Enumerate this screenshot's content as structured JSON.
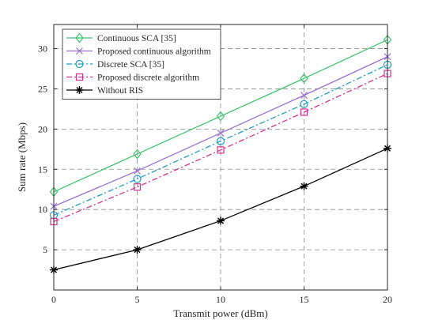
{
  "chart_data": {
    "type": "line",
    "xlabel": "Transmit power (dBm)",
    "ylabel": "Sum rate (Mbps)",
    "xlim": [
      0,
      20
    ],
    "ylim": [
      0,
      33
    ],
    "xticks": [
      0,
      5,
      10,
      15,
      20
    ],
    "yticks": [
      5,
      10,
      15,
      20,
      25,
      30
    ],
    "grid": true,
    "grid_style": "dashed",
    "legend_position": "top-left",
    "x": [
      0,
      5,
      10,
      15,
      20
    ],
    "series": [
      {
        "name": "Continuous SCA [35]",
        "values": [
          12.2,
          16.9,
          21.6,
          26.3,
          31.1
        ],
        "color": "#3ec46d",
        "marker": "diamond",
        "dash": "solid"
      },
      {
        "name": "Proposed continuous algorithm",
        "values": [
          10.4,
          14.8,
          19.5,
          24.2,
          29.0
        ],
        "color": "#9b6fd1",
        "marker": "x",
        "dash": "solid"
      },
      {
        "name": "Discrete SCA [35]",
        "values": [
          9.3,
          13.8,
          18.5,
          23.1,
          28.0
        ],
        "color": "#1f9dc4",
        "marker": "circle",
        "dash": "dashdot"
      },
      {
        "name": "Proposed discrete algorithm",
        "values": [
          8.5,
          12.8,
          17.4,
          22.1,
          26.9
        ],
        "color": "#d4328f",
        "marker": "square",
        "dash": "dashdot"
      },
      {
        "name": "Without RIS",
        "values": [
          2.5,
          5.0,
          8.6,
          12.9,
          17.6
        ],
        "color": "#000000",
        "marker": "star",
        "dash": "solid"
      }
    ]
  }
}
